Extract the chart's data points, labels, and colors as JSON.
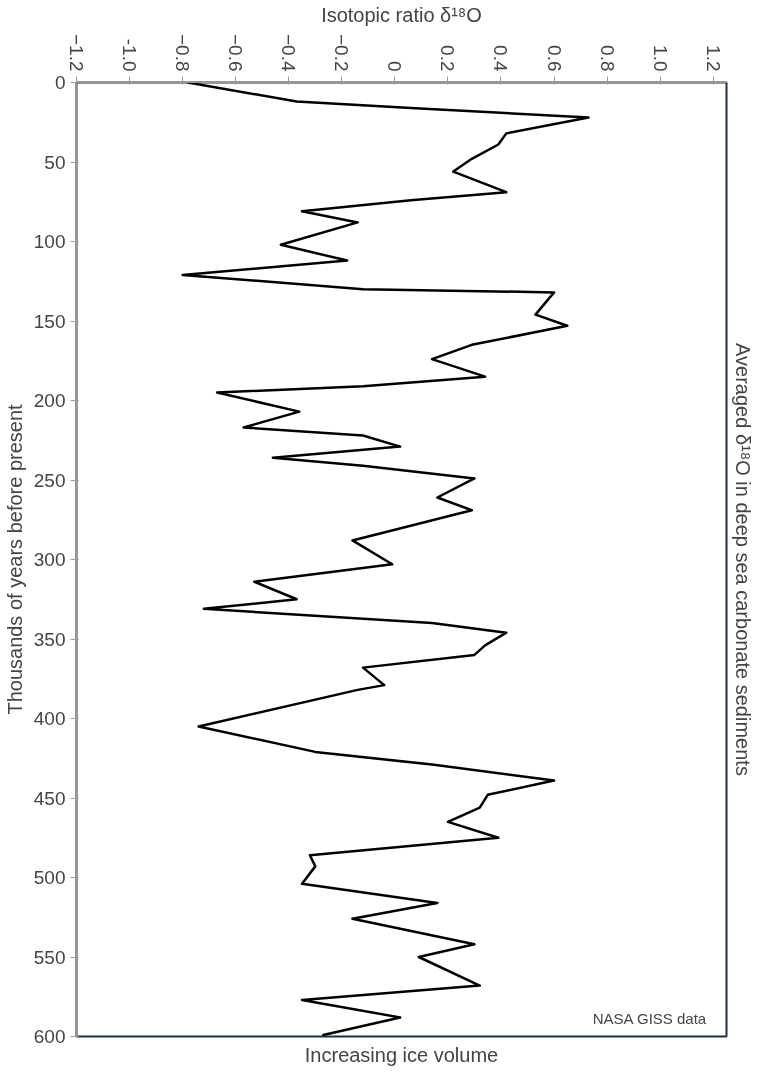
{
  "chart_data": {
    "type": "line",
    "xlabel": "Isotopic ratio δ¹⁸O",
    "ylabel": "Thousands of years before present",
    "annotations": [
      "Averaged δ¹⁸O in deep sea carbonate sediments",
      "Increasing ice volume",
      "NASA GISS data"
    ],
    "xlim": [
      -1.2,
      1.25
    ],
    "ylim": [
      600,
      0
    ],
    "xticks": [
      -1.2,
      {
        "value": -1.0,
        "label": "-1.0"
      },
      -0.8,
      -0.6,
      -0.4,
      -0.2,
      0,
      0.2,
      0.4,
      0.6,
      0.8,
      {
        "value": 1.0,
        "label": "1.0"
      },
      1.2
    ],
    "yticks": [
      0,
      50,
      100,
      150,
      200,
      250,
      300,
      350,
      400,
      450,
      500,
      550,
      600
    ],
    "grid": false,
    "marker": "none",
    "line_style": "solid",
    "series": [
      {
        "color": "#000000",
        "x": [
          -0.78,
          -0.37,
          0.06,
          0.73,
          0.42,
          0.39,
          0.29,
          0.22,
          0.42,
          0.06,
          -0.35,
          -0.14,
          -0.43,
          -0.18,
          -0.8,
          -0.12,
          0.6,
          0.53,
          0.65,
          0.29,
          0.14,
          0.34,
          -0.12,
          -0.67,
          -0.36,
          -0.57,
          -0.12,
          0.02,
          -0.46,
          -0.12,
          0.3,
          0.16,
          0.29,
          -0.16,
          -0.01,
          -0.53,
          -0.37,
          -0.72,
          0.14,
          0.42,
          0.34,
          0.3,
          -0.12,
          -0.04,
          -0.14,
          -0.74,
          -0.3,
          0.14,
          0.6,
          0.35,
          0.32,
          0.2,
          0.39,
          -0.32,
          -0.3,
          -0.35,
          0.16,
          -0.16,
          0.3,
          0.09,
          0.32,
          -0.35,
          0.02,
          -0.27
        ],
        "values": [
          0,
          12,
          16,
          22,
          32,
          39,
          48,
          56,
          69,
          74,
          81,
          88,
          102,
          112,
          121,
          130,
          132,
          146,
          153,
          165,
          174,
          185,
          191,
          195,
          207,
          217,
          222,
          229,
          236,
          241,
          249,
          261,
          269,
          288,
          303,
          314,
          325,
          331,
          340,
          346,
          354,
          360,
          368,
          379,
          382,
          405,
          421,
          429,
          439,
          448,
          456,
          465,
          475,
          486,
          493,
          504,
          516,
          526,
          542,
          550,
          568,
          577,
          588,
          599
        ]
      }
    ]
  }
}
